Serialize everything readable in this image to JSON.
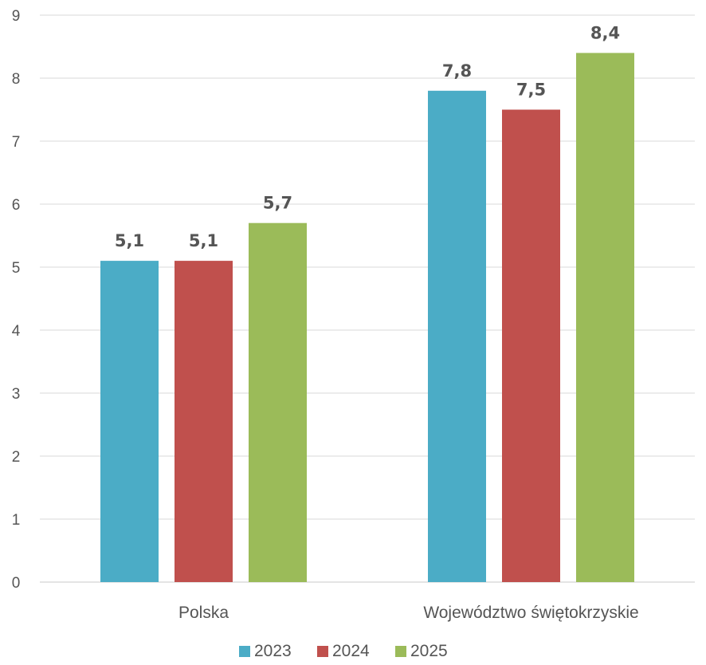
{
  "chart_data": {
    "type": "bar",
    "categories": [
      "Polska",
      "Województwo świętokrzyskie"
    ],
    "series": [
      {
        "name": "2023",
        "values": [
          5.1,
          7.8
        ],
        "labels": [
          "5,1",
          "7,8"
        ],
        "color": "#4BACC6"
      },
      {
        "name": "2024",
        "values": [
          5.1,
          7.5
        ],
        "labels": [
          "5,1",
          "7,5"
        ],
        "color": "#C0504D"
      },
      {
        "name": "2025",
        "values": [
          5.7,
          8.4
        ],
        "labels": [
          "5,7",
          "8,4"
        ],
        "color": "#9BBB59"
      }
    ],
    "title": "",
    "xlabel": "",
    "ylabel": "",
    "ylim": [
      0,
      9
    ],
    "yticks": [
      "0",
      "1",
      "2",
      "3",
      "4",
      "5",
      "6",
      "7",
      "8",
      "9"
    ],
    "grid": true,
    "legend_position": "bottom"
  }
}
